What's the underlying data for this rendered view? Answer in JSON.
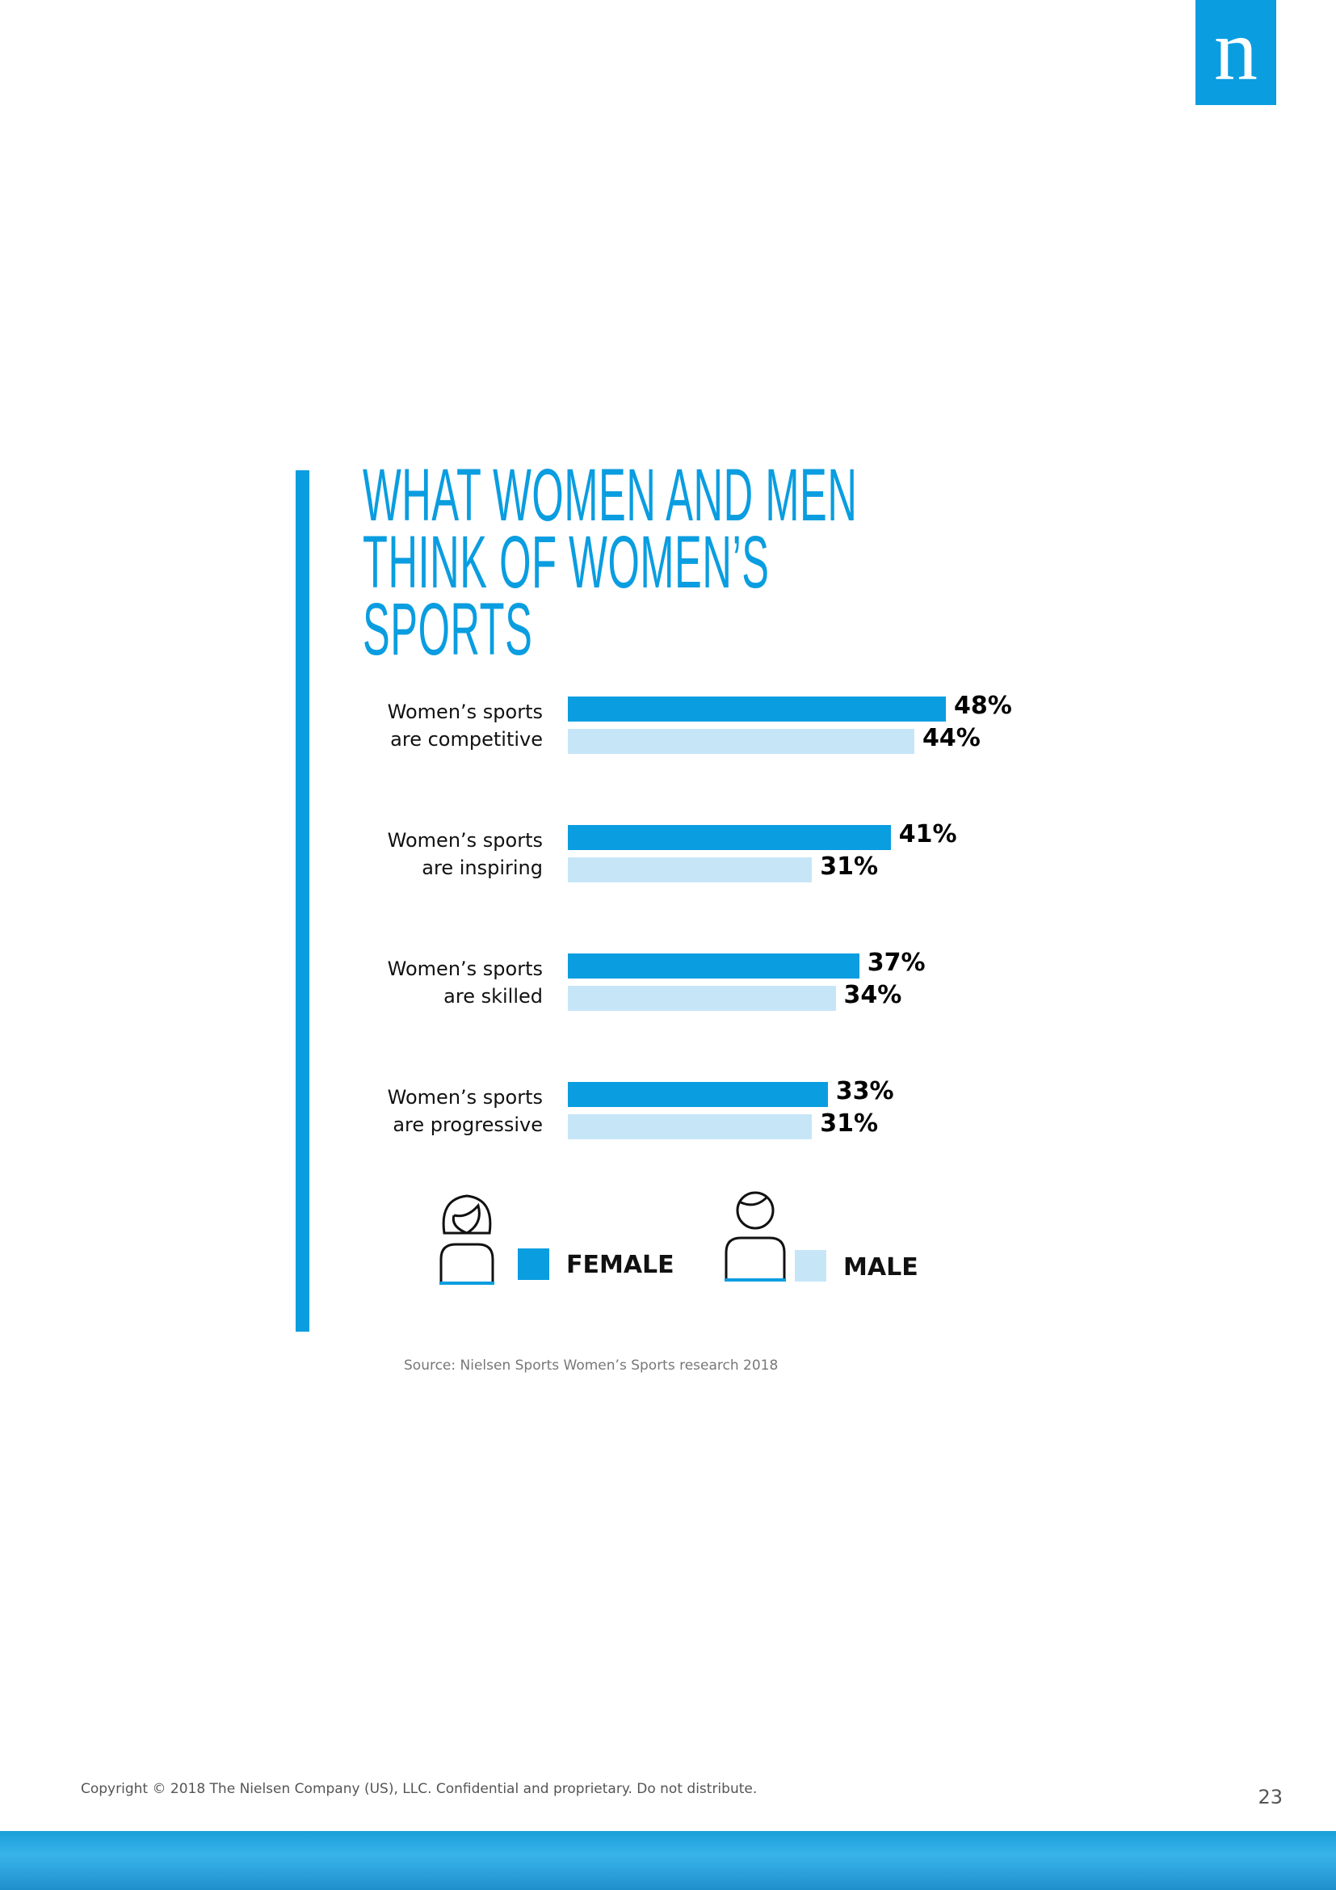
{
  "logo": "n",
  "chart_data": {
    "type": "bar",
    "orientation": "horizontal",
    "title": "WHAT WOMEN AND MEN\nTHINK OF WOMEN’S SPORTS",
    "categories": [
      "Women’s sports\nare competitive",
      "Women’s sports\nare inspiring",
      "Women’s sports\nare skilled",
      "Women’s sports\nare progressive"
    ],
    "series": [
      {
        "name": "FEMALE",
        "color": "#0a9de0",
        "values": [
          48,
          41,
          37,
          33
        ],
        "value_labels": [
          "48%",
          "41%",
          "37%",
          "33%"
        ]
      },
      {
        "name": "MALE",
        "color": "#c6e6f8",
        "values": [
          44,
          31,
          34,
          31
        ],
        "value_labels": [
          "44%",
          "31%",
          "34%",
          "31%"
        ]
      }
    ]
  },
  "source": "Source: Nielsen Sports Women’s Sports research 2018",
  "footer": {
    "copyright": "Copyright © 2018 The Nielsen Company (US), LLC. Confidential and proprietary. Do not distribute.",
    "page_number": "23"
  }
}
